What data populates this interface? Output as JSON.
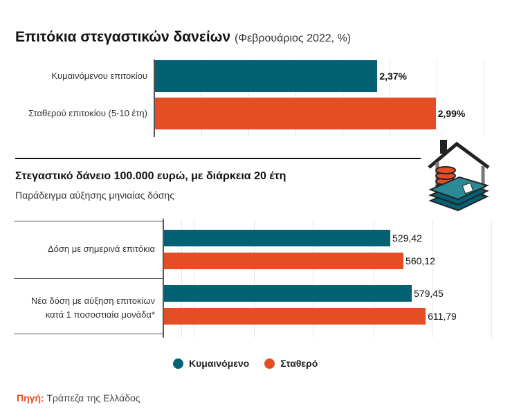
{
  "colors": {
    "variable": "#036173",
    "fixed": "#e34e25",
    "source_label": "#e34e25"
  },
  "chart_data": [
    {
      "type": "bar",
      "orientation": "horizontal",
      "title": "Επιτόκια στεγαστικών δανείων",
      "subtitle": "(Φεβρουάριος 2022, %)",
      "categories": [
        "Κυμαινόμενου επιτοκίου",
        "Σταθερού επιτοκίου (5-10 έτη)"
      ],
      "values": [
        2.37,
        2.99
      ],
      "value_labels": [
        "2,37%",
        "2,99%"
      ],
      "xlim": [
        0,
        3.5
      ],
      "grid": true
    },
    {
      "type": "bar",
      "orientation": "horizontal",
      "title": "Στεγαστικό δάνειο 100.000 ευρώ, με διάρκεια 20 έτη",
      "subtitle": "Παράδειγμα αύξησης μηνιαίας δόσης",
      "categories": [
        "Δόση με σημερινά επιτόκια",
        "Νέα δόση με αύξηση επιτοκίων κατά 1 ποσοστιαία μονάδα*"
      ],
      "series": [
        {
          "name": "Κυμαινόμενο",
          "values": [
            529.42,
            579.45
          ],
          "value_labels": [
            "529,42",
            "579,45"
          ]
        },
        {
          "name": "Σταθερό",
          "values": [
            560.12,
            611.79
          ],
          "value_labels": [
            "560,12",
            "611,79"
          ]
        }
      ],
      "xlim": [
        0,
        765
      ],
      "grid": true,
      "legend": "bottom"
    }
  ],
  "source": {
    "label": "Πηγή:",
    "text": "Τράπεζα της Ελλάδος"
  }
}
